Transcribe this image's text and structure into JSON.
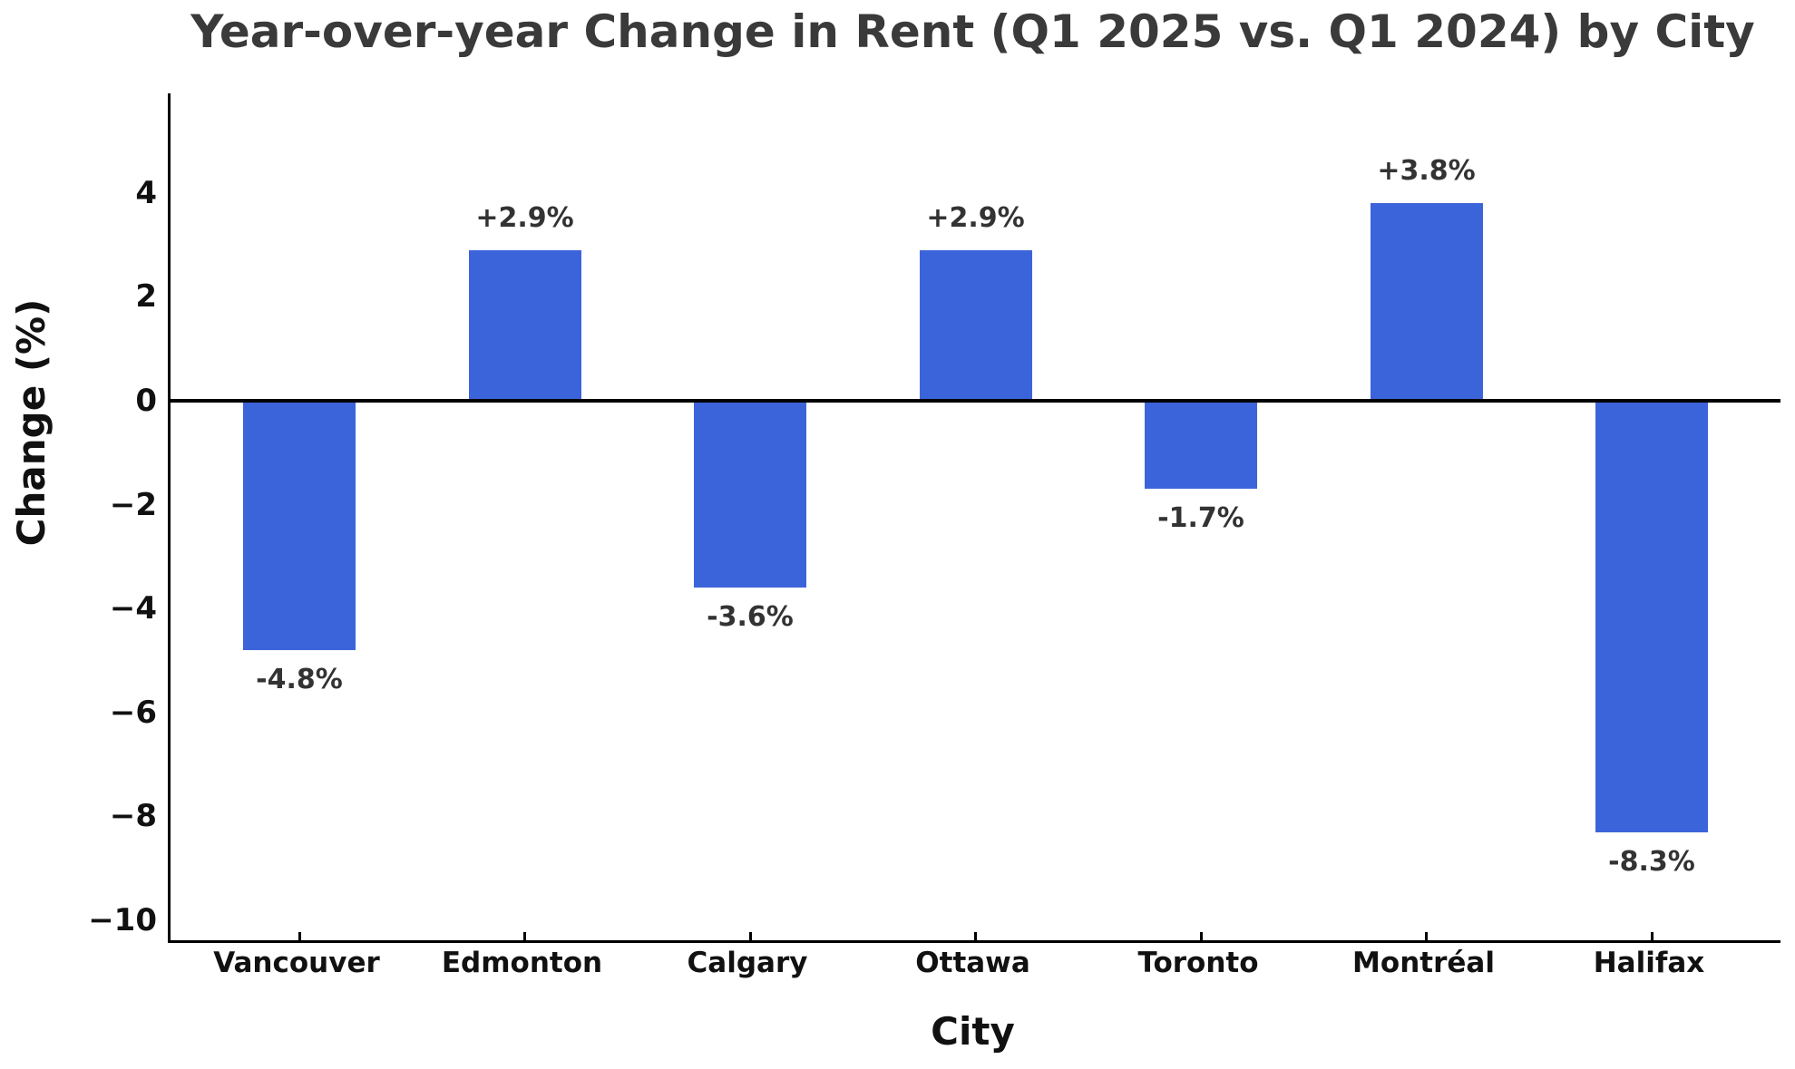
{
  "title": "Year-over-year Change in Rent (Q1 2025 vs. Q1 2024) by City",
  "chart_data": {
    "type": "bar",
    "title": "Year-over-year Change in Rent (Q1 2025 vs. Q1 2024) by City",
    "xlabel": "City",
    "ylabel": "Change (%)",
    "categories": [
      "Vancouver",
      "Edmonton",
      "Calgary",
      "Ottawa",
      "Toronto",
      "Montréal",
      "Halifax"
    ],
    "values": [
      -4.8,
      2.9,
      -3.6,
      2.9,
      -1.7,
      3.8,
      -8.3
    ],
    "bar_labels": [
      "-4.8%",
      "+2.9%",
      "-3.6%",
      "+2.9%",
      "-1.7%",
      "+3.8%",
      "-8.3%"
    ],
    "yticks": [
      4,
      2,
      0,
      -2,
      -4,
      -6,
      -8,
      -10
    ],
    "ylim": [
      -10.4,
      5.9
    ],
    "grid": false,
    "legend": null,
    "zero_baseline": true,
    "bar_color": "#3c64da",
    "axis_color": "#000000",
    "title_color": "#3a3a3a",
    "value_label_color": "#333333",
    "tick_label_color": "#111111",
    "background_color": "#ffffff"
  }
}
